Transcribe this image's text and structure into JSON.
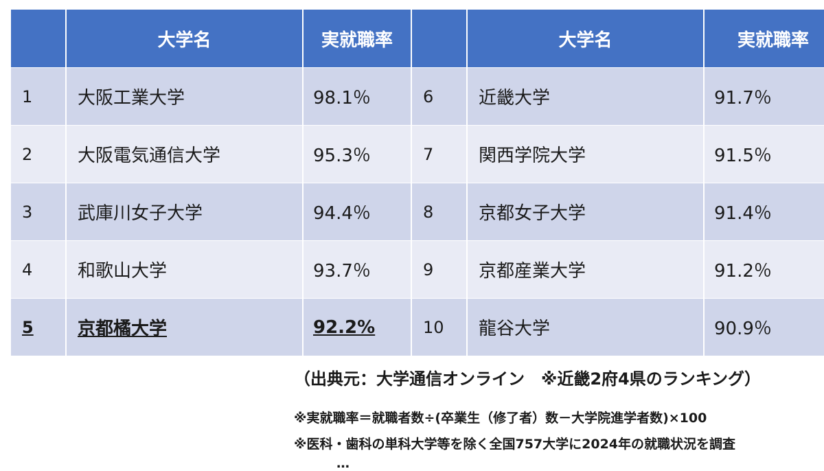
{
  "table": {
    "headers": [
      "",
      "大学名",
      "実就職率",
      "",
      "大学名",
      "実就職率"
    ],
    "rows": [
      {
        "left": {
          "rank": "1",
          "name": "大阪工業大学",
          "rate": "98.1％"
        },
        "right": {
          "rank": "6",
          "name": "近畿大学",
          "rate": "91.7％"
        }
      },
      {
        "left": {
          "rank": "2",
          "name": "大阪電気通信大学",
          "rate": "95.3％"
        },
        "right": {
          "rank": "7",
          "name": "関西学院大学",
          "rate": "91.5％"
        }
      },
      {
        "left": {
          "rank": "3",
          "name": "武庫川女子大学",
          "rate": "94.4％"
        },
        "right": {
          "rank": "8",
          "name": "京都女子大学",
          "rate": "91.4％"
        }
      },
      {
        "left": {
          "rank": "4",
          "name": "和歌山大学",
          "rate": "93.7％"
        },
        "right": {
          "rank": "9",
          "name": "京都産業大学",
          "rate": "91.2％"
        }
      },
      {
        "left": {
          "rank": "5",
          "name": "京都橘大学",
          "rate": "92.2%"
        },
        "right": {
          "rank": "10",
          "name": "龍谷大学",
          "rate": "90.9％"
        }
      }
    ]
  },
  "colors": {
    "header": "#4472c4",
    "band_a": "#cfd5ea",
    "band_b": "#e9ebf5"
  },
  "notes": {
    "source": "（出典元：大学通信オンライン　※近畿2府4県のランキング）",
    "formula": "※実就職率＝就職者数÷(卒業生（修了者）数－大学院進学者数)×100",
    "scope": "※医科・歯科の単科大学等を除く全国757大学に2024年の就職状況を調査",
    "cut_off": "…"
  }
}
